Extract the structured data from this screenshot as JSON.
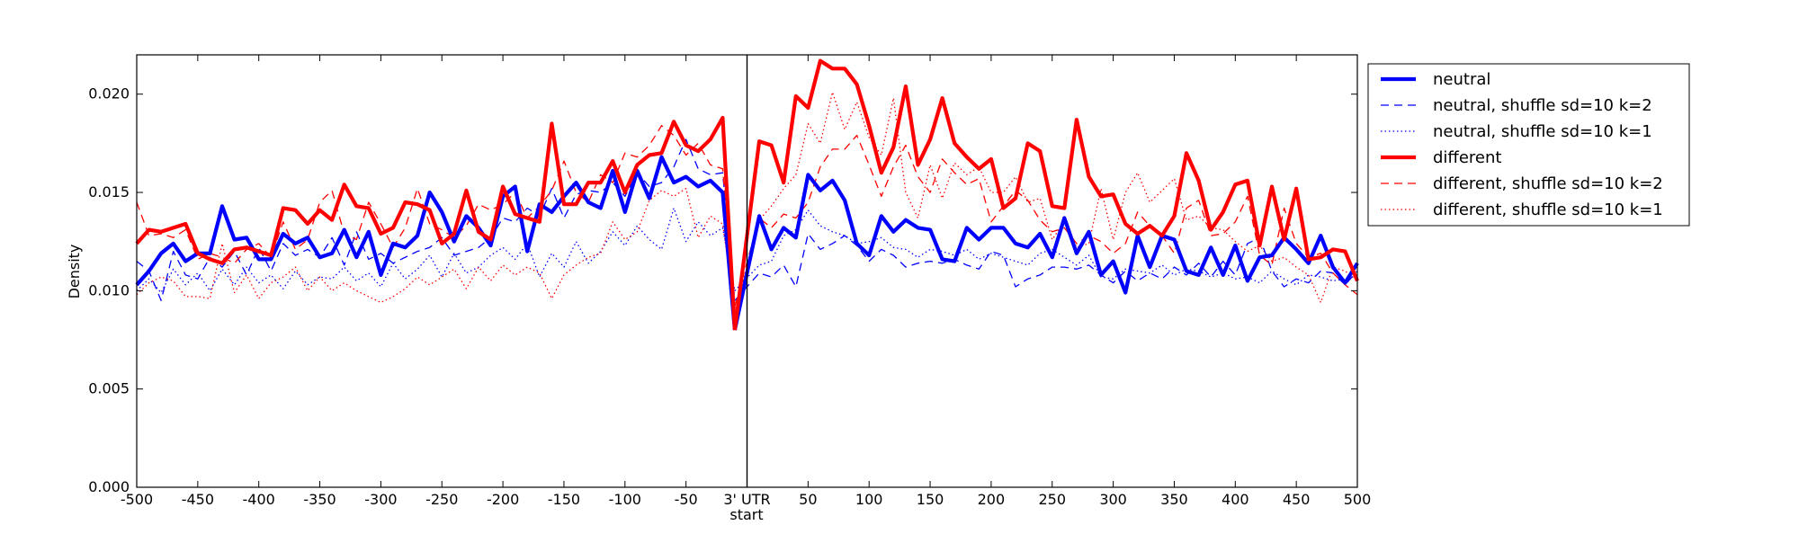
{
  "chart_data": {
    "type": "line",
    "title": "",
    "xlabel": "start",
    "ylabel": "Density",
    "xlim": [
      -500,
      500
    ],
    "ylim": [
      0.0,
      0.022
    ],
    "grid": false,
    "legend_position": "outside-top-right",
    "x_ticks": [
      "-500",
      "-450",
      "-400",
      "-350",
      "-300",
      "-250",
      "-200",
      "-150",
      "-100",
      "-50",
      "3' UTR",
      "50",
      "100",
      "150",
      "200",
      "250",
      "300",
      "350",
      "400",
      "450",
      "500"
    ],
    "y_ticks": [
      "0.000",
      "0.005",
      "0.010",
      "0.015",
      "0.020"
    ],
    "x_step": 10,
    "series": [
      {
        "name": "neutral",
        "color": "#0000ff",
        "style": "solid-thick",
        "left": [
          0.0103,
          0.011,
          0.0119,
          0.0124,
          0.0115,
          0.0119,
          0.0119,
          0.0143,
          0.0126,
          0.0127,
          0.0116,
          0.0116,
          0.0129,
          0.0124,
          0.0127,
          0.0117,
          0.0119,
          0.0131,
          0.0117,
          0.013,
          0.0108,
          0.0124,
          0.0122,
          0.0128,
          0.015,
          0.014,
          0.0125,
          0.0138,
          0.0132,
          0.0123,
          0.0148,
          0.0153,
          0.012,
          0.0144,
          0.014,
          0.0148,
          0.0155,
          0.0145,
          0.0142,
          0.0161,
          0.014,
          0.0161,
          0.0147,
          0.0168,
          0.0155,
          0.0158,
          0.0153,
          0.0156,
          0.015,
          0.008
        ],
        "right": [
          0.0138,
          0.0121,
          0.0132,
          0.0127,
          0.0159,
          0.0151,
          0.0156,
          0.0146,
          0.0124,
          0.0118,
          0.0138,
          0.013,
          0.0136,
          0.0132,
          0.0131,
          0.0116,
          0.0115,
          0.0132,
          0.0126,
          0.0132,
          0.0132,
          0.0124,
          0.0122,
          0.0129,
          0.0117,
          0.0137,
          0.0119,
          0.013,
          0.0108,
          0.0115,
          0.0099,
          0.0128,
          0.0112,
          0.0128,
          0.0126,
          0.011,
          0.0108,
          0.0122,
          0.0108,
          0.0123,
          0.0105,
          0.0117,
          0.0118,
          0.0127,
          0.0121,
          0.0114,
          0.0128,
          0.0112,
          0.0104,
          0.0114
        ]
      },
      {
        "name": "neutral, shuffle sd=10 k=2",
        "color": "#0000ff",
        "style": "dashed",
        "left": [
          0.0115,
          0.011,
          0.0095,
          0.012,
          0.0108,
          0.0106,
          0.0117,
          0.0112,
          0.012,
          0.0108,
          0.0122,
          0.011,
          0.0124,
          0.0118,
          0.0121,
          0.0117,
          0.0127,
          0.0113,
          0.013,
          0.0116,
          0.0119,
          0.0114,
          0.0117,
          0.012,
          0.0122,
          0.0127,
          0.0118,
          0.012,
          0.0122,
          0.0127,
          0.0137,
          0.0135,
          0.0142,
          0.0138,
          0.0152,
          0.0137,
          0.0149,
          0.0151,
          0.015,
          0.0155,
          0.0148,
          0.016,
          0.0153,
          0.0155,
          0.0163,
          0.0177,
          0.0162,
          0.0159,
          0.016,
          0.0095
        ],
        "right": [
          0.0109,
          0.0107,
          0.0113,
          0.0102,
          0.0129,
          0.0121,
          0.0124,
          0.0128,
          0.0123,
          0.0115,
          0.0121,
          0.0118,
          0.0112,
          0.0114,
          0.0115,
          0.0114,
          0.0116,
          0.0113,
          0.0111,
          0.012,
          0.0118,
          0.0102,
          0.0106,
          0.0108,
          0.0112,
          0.0112,
          0.0111,
          0.0113,
          0.0108,
          0.0104,
          0.011,
          0.0105,
          0.0109,
          0.0106,
          0.0112,
          0.0108,
          0.0114,
          0.0107,
          0.0115,
          0.0108,
          0.0124,
          0.0127,
          0.011,
          0.0102,
          0.0106,
          0.0104,
          0.011,
          0.0109,
          0.0103,
          0.011
        ]
      },
      {
        "name": "neutral, shuffle sd=10 k=1",
        "color": "#0000ff",
        "style": "dotted",
        "left": [
          0.01,
          0.0106,
          0.0099,
          0.0111,
          0.0103,
          0.0109,
          0.01,
          0.0111,
          0.0103,
          0.0112,
          0.0104,
          0.0108,
          0.0101,
          0.011,
          0.0103,
          0.0107,
          0.0106,
          0.0112,
          0.0105,
          0.0109,
          0.0102,
          0.0114,
          0.0106,
          0.0111,
          0.0118,
          0.0107,
          0.0119,
          0.0109,
          0.0112,
          0.0118,
          0.0122,
          0.0116,
          0.0124,
          0.0107,
          0.0119,
          0.0112,
          0.0125,
          0.0114,
          0.012,
          0.013,
          0.0123,
          0.0133,
          0.0126,
          0.0121,
          0.0142,
          0.0125,
          0.0135,
          0.0128,
          0.0132,
          0.01
        ],
        "right": [
          0.0113,
          0.0115,
          0.0128,
          0.0131,
          0.0141,
          0.0133,
          0.013,
          0.0128,
          0.0124,
          0.0125,
          0.0127,
          0.0122,
          0.0121,
          0.0117,
          0.0121,
          0.012,
          0.0118,
          0.0121,
          0.0116,
          0.0119,
          0.0117,
          0.0115,
          0.0113,
          0.0119,
          0.0121,
          0.0117,
          0.0113,
          0.0118,
          0.0107,
          0.0106,
          0.0111,
          0.011,
          0.0109,
          0.0113,
          0.0108,
          0.0111,
          0.011,
          0.0107,
          0.0109,
          0.0106,
          0.0107,
          0.0104,
          0.011,
          0.0106,
          0.0103,
          0.0108,
          0.0107,
          0.0105,
          0.0106,
          0.0109
        ]
      },
      {
        "name": "different",
        "color": "#ff0000",
        "style": "solid-thick",
        "left": [
          0.0124,
          0.0131,
          0.013,
          0.0132,
          0.0134,
          0.0119,
          0.0116,
          0.0114,
          0.0121,
          0.0122,
          0.012,
          0.0118,
          0.0142,
          0.0141,
          0.0134,
          0.0141,
          0.0136,
          0.0154,
          0.0143,
          0.0142,
          0.0129,
          0.0132,
          0.0145,
          0.0144,
          0.0141,
          0.0124,
          0.0129,
          0.0151,
          0.013,
          0.0126,
          0.0153,
          0.0139,
          0.0137,
          0.0135,
          0.0185,
          0.0144,
          0.0144,
          0.0155,
          0.0155,
          0.0166,
          0.015,
          0.0164,
          0.0169,
          0.017,
          0.0186,
          0.0174,
          0.0171,
          0.0177,
          0.0188,
          0.008
        ],
        "right": [
          0.0176,
          0.0174,
          0.0155,
          0.0199,
          0.0193,
          0.0217,
          0.0213,
          0.0213,
          0.0205,
          0.0184,
          0.016,
          0.0173,
          0.0204,
          0.0164,
          0.0177,
          0.0198,
          0.0175,
          0.0168,
          0.0162,
          0.0167,
          0.0142,
          0.0147,
          0.0175,
          0.0171,
          0.0143,
          0.0142,
          0.0187,
          0.0158,
          0.0148,
          0.0149,
          0.0134,
          0.0129,
          0.0133,
          0.0128,
          0.0138,
          0.017,
          0.0156,
          0.0131,
          0.014,
          0.0154,
          0.0156,
          0.0123,
          0.0153,
          0.0126,
          0.0152,
          0.0116,
          0.0117,
          0.0121,
          0.012,
          0.0105
        ]
      },
      {
        "name": "different, shuffle sd=10 k=2",
        "color": "#ff0000",
        "style": "dashed",
        "left": [
          0.0145,
          0.0128,
          0.0129,
          0.0127,
          0.0131,
          0.0116,
          0.0119,
          0.0117,
          0.0114,
          0.0121,
          0.0124,
          0.0117,
          0.0135,
          0.0121,
          0.0126,
          0.0145,
          0.0151,
          0.0129,
          0.0126,
          0.0145,
          0.0134,
          0.0122,
          0.0132,
          0.0152,
          0.0134,
          0.0131,
          0.0127,
          0.0133,
          0.0144,
          0.0141,
          0.0144,
          0.015,
          0.0137,
          0.0143,
          0.0151,
          0.0166,
          0.015,
          0.0145,
          0.0159,
          0.0155,
          0.017,
          0.0168,
          0.0174,
          0.0184,
          0.0179,
          0.0169,
          0.0175,
          0.0164,
          0.0162,
          0.0092
        ],
        "right": [
          0.0137,
          0.0132,
          0.0139,
          0.0137,
          0.0145,
          0.0163,
          0.0172,
          0.0172,
          0.0179,
          0.0164,
          0.0148,
          0.0163,
          0.0174,
          0.0158,
          0.015,
          0.0167,
          0.016,
          0.0154,
          0.0157,
          0.0135,
          0.0143,
          0.0151,
          0.0146,
          0.0136,
          0.013,
          0.0132,
          0.0124,
          0.0128,
          0.0125,
          0.0119,
          0.0124,
          0.014,
          0.0133,
          0.0128,
          0.0119,
          0.0142,
          0.0146,
          0.0128,
          0.0129,
          0.0135,
          0.0148,
          0.0118,
          0.0113,
          0.0142,
          0.0124,
          0.0117,
          0.0119,
          0.0109,
          0.0103,
          0.0098
        ]
      },
      {
        "name": "different, shuffle sd=10 k=1",
        "color": "#ff0000",
        "style": "dotted",
        "left": [
          0.0098,
          0.0104,
          0.0107,
          0.0105,
          0.0097,
          0.0097,
          0.0096,
          0.0124,
          0.0099,
          0.0108,
          0.0096,
          0.0104,
          0.0107,
          0.0112,
          0.01,
          0.0107,
          0.01,
          0.0104,
          0.01,
          0.0097,
          0.0094,
          0.0097,
          0.0101,
          0.0107,
          0.0103,
          0.0107,
          0.0111,
          0.0101,
          0.0112,
          0.0105,
          0.0113,
          0.0108,
          0.0112,
          0.0109,
          0.0096,
          0.0108,
          0.0113,
          0.0117,
          0.0119,
          0.0135,
          0.0126,
          0.013,
          0.0146,
          0.0151,
          0.0148,
          0.0152,
          0.0127,
          0.0138,
          0.0134,
          0.0089
        ],
        "right": [
          0.0136,
          0.0143,
          0.0152,
          0.0159,
          0.0185,
          0.0175,
          0.0201,
          0.0182,
          0.0196,
          0.0178,
          0.0169,
          0.0198,
          0.015,
          0.0137,
          0.0164,
          0.0147,
          0.0165,
          0.0159,
          0.0163,
          0.015,
          0.015,
          0.0158,
          0.0145,
          0.0147,
          0.0126,
          0.0135,
          0.0122,
          0.0124,
          0.0152,
          0.0126,
          0.015,
          0.016,
          0.0145,
          0.0151,
          0.0157,
          0.0136,
          0.0138,
          0.0132,
          0.0131,
          0.0125,
          0.012,
          0.0123,
          0.0115,
          0.0117,
          0.0112,
          0.0108,
          0.0094,
          0.0112,
          0.011,
          0.0105
        ]
      }
    ]
  }
}
